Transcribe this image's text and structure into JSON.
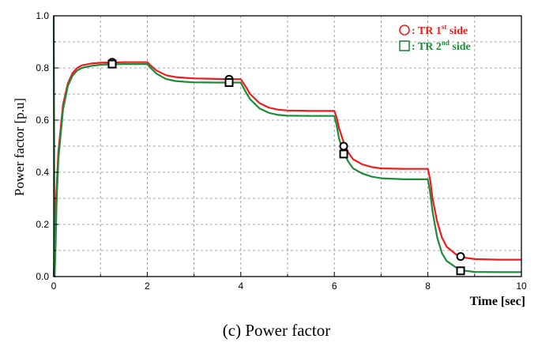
{
  "chart_data": {
    "type": "line",
    "title": "",
    "caption": "(c)  Power  factor",
    "xlabel": "Time [sec]",
    "ylabel": "Power factor [p.u]",
    "xlim": [
      0,
      10
    ],
    "ylim": [
      0,
      1.0
    ],
    "xticks": [
      "0",
      "2",
      "4",
      "6",
      "8",
      "10"
    ],
    "yticks": [
      "0.0",
      "0.2",
      "0.4",
      "0.6",
      "0.8",
      "1.0"
    ],
    "grid": true,
    "legend_position": "top-right",
    "series": [
      {
        "name": "TR 1st side",
        "legend_prefix": ": TR 1",
        "legend_sup": "st",
        "legend_suffix": " side",
        "color": "#ee1c1c",
        "marker": "circle",
        "x": [
          0,
          0.05,
          0.1,
          0.2,
          0.3,
          0.4,
          0.5,
          0.6,
          0.8,
          1.0,
          1.2,
          1.5,
          1.8,
          2.0,
          2.1,
          2.2,
          2.4,
          2.6,
          2.8,
          3.0,
          3.5,
          3.7,
          4.0,
          4.1,
          4.2,
          4.4,
          4.6,
          4.8,
          5.0,
          5.5,
          6.0,
          6.05,
          6.1,
          6.2,
          6.3,
          6.4,
          6.6,
          6.8,
          7.0,
          7.5,
          8.0,
          8.05,
          8.1,
          8.2,
          8.3,
          8.4,
          8.6,
          8.7,
          8.8,
          9.0,
          9.5,
          10
        ],
        "y": [
          0,
          0.3,
          0.48,
          0.66,
          0.74,
          0.78,
          0.8,
          0.81,
          0.817,
          0.82,
          0.821,
          0.822,
          0.822,
          0.822,
          0.805,
          0.79,
          0.772,
          0.765,
          0.762,
          0.76,
          0.758,
          0.757,
          0.757,
          0.73,
          0.7,
          0.665,
          0.648,
          0.64,
          0.637,
          0.635,
          0.635,
          0.61,
          0.57,
          0.515,
          0.475,
          0.45,
          0.43,
          0.42,
          0.415,
          0.413,
          0.413,
          0.37,
          0.3,
          0.21,
          0.15,
          0.115,
          0.085,
          0.078,
          0.072,
          0.067,
          0.065,
          0.065
        ],
        "marker_x": [
          1.25,
          3.75,
          6.2,
          8.7
        ],
        "marker_y": [
          0.822,
          0.757,
          0.5,
          0.077
        ]
      },
      {
        "name": "TR 2nd side",
        "legend_prefix": ": TR 2",
        "legend_sup": "nd",
        "legend_suffix": "  side",
        "color": "#1f8a3a",
        "marker": "square",
        "x": [
          0,
          0.02,
          0.04,
          0.06,
          0.1,
          0.2,
          0.3,
          0.4,
          0.5,
          0.6,
          0.8,
          1.0,
          1.2,
          1.5,
          1.8,
          2.0,
          2.1,
          2.2,
          2.4,
          2.6,
          2.8,
          3.0,
          3.5,
          3.7,
          4.0,
          4.1,
          4.2,
          4.4,
          4.6,
          4.8,
          5.0,
          5.5,
          6.0,
          6.05,
          6.1,
          6.2,
          6.3,
          6.4,
          6.6,
          6.8,
          7.0,
          7.5,
          8.0,
          8.05,
          8.1,
          8.2,
          8.3,
          8.4,
          8.6,
          8.7,
          8.8,
          9.0,
          9.5,
          10
        ],
        "y": [
          1.0,
          0.0,
          0.12,
          0.28,
          0.45,
          0.64,
          0.73,
          0.77,
          0.79,
          0.8,
          0.808,
          0.812,
          0.814,
          0.815,
          0.815,
          0.815,
          0.795,
          0.778,
          0.758,
          0.75,
          0.747,
          0.745,
          0.744,
          0.744,
          0.744,
          0.71,
          0.68,
          0.645,
          0.628,
          0.62,
          0.617,
          0.616,
          0.616,
          0.58,
          0.53,
          0.475,
          0.44,
          0.415,
          0.395,
          0.383,
          0.377,
          0.373,
          0.373,
          0.32,
          0.25,
          0.15,
          0.09,
          0.06,
          0.035,
          0.028,
          0.022,
          0.018,
          0.017,
          0.017
        ],
        "marker_x": [
          1.25,
          3.75,
          6.2,
          8.7
        ],
        "marker_y": [
          0.815,
          0.744,
          0.47,
          0.022
        ]
      }
    ]
  }
}
